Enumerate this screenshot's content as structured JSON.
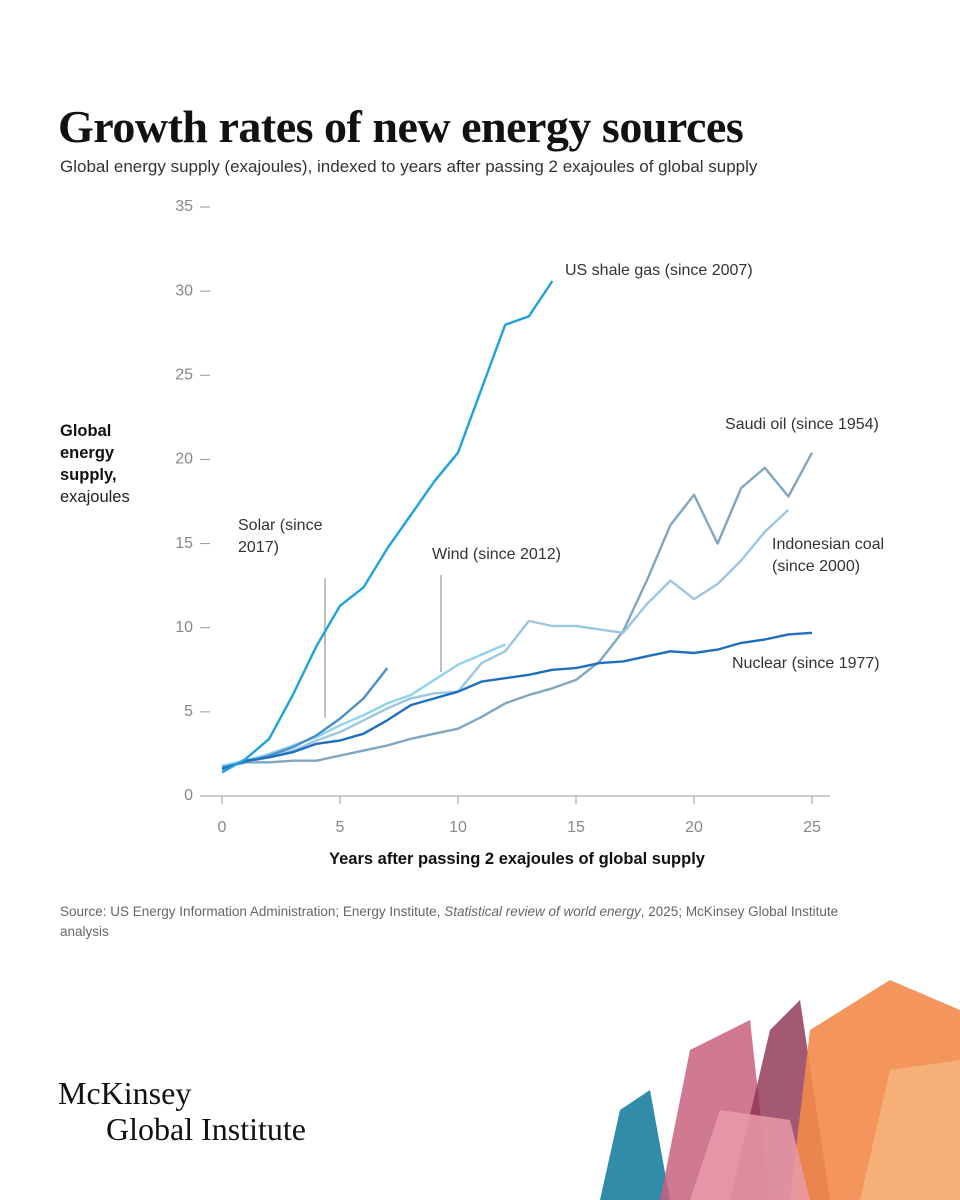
{
  "chart_data": {
    "type": "line",
    "title": "Growth rates of new energy sources",
    "subtitle": "Global energy supply (exajoules), indexed to years after passing 2 exajoules of global supply",
    "y_label": "Global energy supply,",
    "y_label_unit": "exajoules",
    "x_label": "Years after passing 2 exajoules of global supply",
    "xlim": [
      0,
      25
    ],
    "xticks": [
      0,
      5,
      10,
      15,
      20,
      25
    ],
    "ylim": [
      0,
      35
    ],
    "yticks": [
      0,
      5,
      10,
      15,
      20,
      25,
      30,
      35
    ],
    "series": [
      {
        "name": "US shale gas (since 2007)",
        "color": "#1fa3dc",
        "x": [
          0,
          1,
          2,
          3,
          4,
          5,
          6,
          7,
          8,
          9,
          10,
          11,
          12,
          13,
          14
        ],
        "values": [
          1.4,
          2.2,
          3.4,
          6,
          8.9,
          11.3,
          12.4,
          14.7,
          16.7,
          18.7,
          20.4,
          24.2,
          28,
          28.5,
          30.6
        ]
      },
      {
        "name": "Solar (since 2017)",
        "color": "#4a8fc9",
        "x": [
          0,
          1,
          2,
          3,
          4,
          5,
          6,
          7
        ],
        "values": [
          1.7,
          2.0,
          2.4,
          2.9,
          3.6,
          4.6,
          5.8,
          7.6
        ]
      },
      {
        "name": "Wind (since 2012)",
        "color": "#8fd3ee",
        "x": [
          0,
          1,
          2,
          3,
          4,
          5,
          6,
          7,
          8,
          9,
          10,
          11,
          12
        ],
        "values": [
          1.8,
          2.1,
          2.5,
          3.0,
          3.5,
          4.2,
          4.8,
          5.5,
          6.0,
          6.9,
          7.8,
          8.4,
          9.0
        ]
      },
      {
        "name": "Saudi oil (since 1954)",
        "color": "#7fa6c2",
        "x": [
          0,
          1,
          2,
          3,
          4,
          5,
          6,
          7,
          8,
          9,
          10,
          11,
          12,
          13,
          14,
          15,
          16,
          17,
          18,
          19,
          20,
          21,
          22,
          23,
          24,
          25
        ],
        "values": [
          1.8,
          2.0,
          2.0,
          2.1,
          2.1,
          2.4,
          2.7,
          3.0,
          3.4,
          3.7,
          4.0,
          4.7,
          5.5,
          6.0,
          6.4,
          6.9,
          8.0,
          9.8,
          12.8,
          16.1,
          17.9,
          15.0,
          18.3,
          19.5,
          17.8,
          20.4
        ]
      },
      {
        "name": "Indonesian coal (since 2000)",
        "color": "#9cc7e3",
        "x": [
          0,
          1,
          2,
          3,
          4,
          5,
          6,
          7,
          8,
          9,
          10,
          11,
          12,
          13,
          14,
          15,
          16,
          17,
          18,
          19,
          20,
          21,
          22,
          23,
          24
        ],
        "values": [
          1.8,
          2.0,
          2.3,
          2.7,
          3.3,
          3.8,
          4.5,
          5.2,
          5.8,
          6.1,
          6.2,
          7.9,
          8.6,
          10.4,
          10.1,
          10.1,
          9.9,
          9.7,
          11.4,
          12.8,
          11.7,
          12.6,
          14.0,
          15.7,
          17.0
        ]
      },
      {
        "name": "Nuclear (since 1977)",
        "color": "#1f6fc0",
        "x": [
          0,
          1,
          2,
          3,
          4,
          5,
          6,
          7,
          8,
          9,
          10,
          11,
          12,
          13,
          14,
          15,
          16,
          17,
          18,
          19,
          20,
          21,
          22,
          23,
          24,
          25
        ],
        "values": [
          1.6,
          2.1,
          2.3,
          2.6,
          3.1,
          3.3,
          3.7,
          4.5,
          5.4,
          5.8,
          6.2,
          6.8,
          7.0,
          7.2,
          7.5,
          7.6,
          7.9,
          8.0,
          8.3,
          8.6,
          8.5,
          8.7,
          9.1,
          9.3,
          9.6,
          9.7
        ]
      }
    ],
    "source": [
      "Source: US Energy Information Administration; Energy Institute, ",
      "Statistical review of world energy",
      ", 2025; McKinsey Global Institute analysis"
    ],
    "brand": [
      "McKinsey",
      "Global Institute"
    ]
  }
}
